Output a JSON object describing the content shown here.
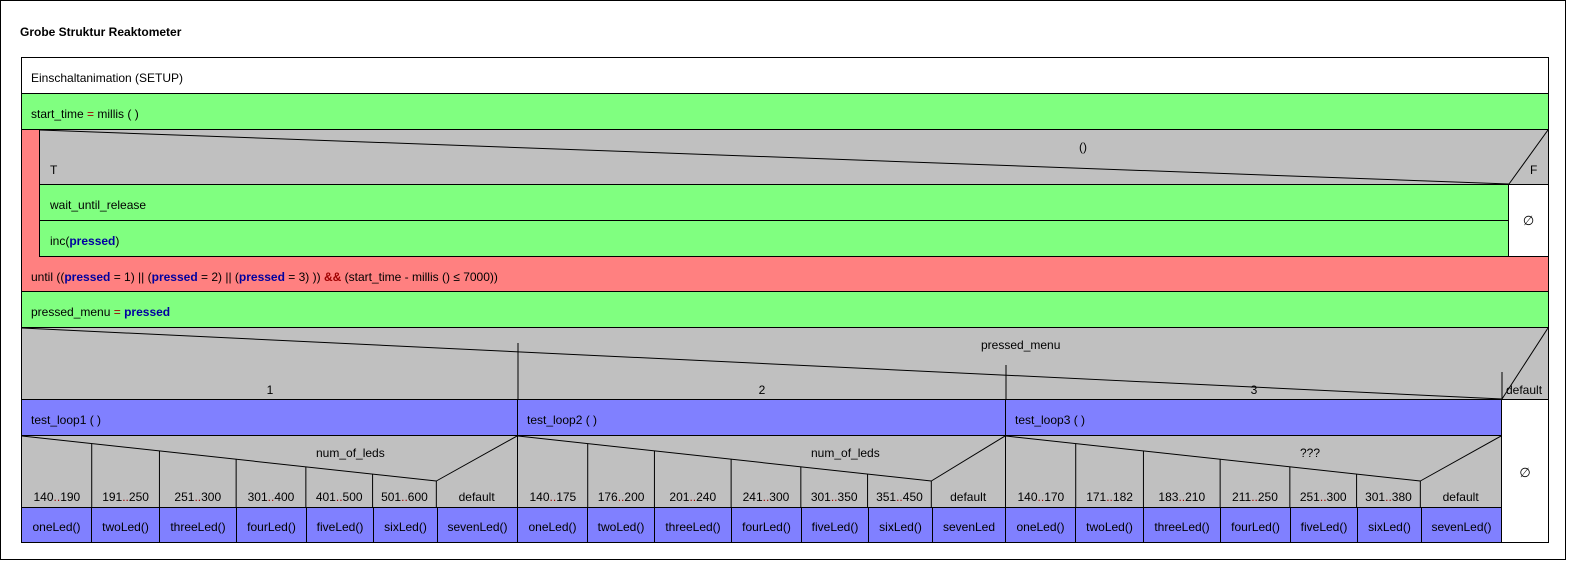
{
  "title": "Grobe Struktur Reaktometer",
  "setup_label": "Einschaltanimation  (SETUP)",
  "start_time": {
    "var": "start_time",
    "op": "=",
    "rhs": "millis ( )"
  },
  "if_block": {
    "condition": "()",
    "true_label": "T",
    "false_label": "F",
    "true_statements": [
      "wait_until_release"
    ],
    "inc_call": {
      "pre": "inc(",
      "var": "pressed",
      "post": ")"
    },
    "false_symbol": "∅"
  },
  "until_line": {
    "p1": "until ((",
    "v1": "pressed",
    "p2": " = 1) || (",
    "v2": "pressed",
    "p3": " = 2) || (",
    "v3": "pressed",
    "p4": " = 3) )) ",
    "andop": "&&",
    "p5": " (start_time - millis () ≤ 7000))"
  },
  "assign_menu": {
    "var": "pressed_menu",
    "op": "=",
    "rhs": "pressed"
  },
  "switch_main": {
    "selector": "pressed_menu",
    "default_label": "default",
    "default_symbol": "∅",
    "cases": [
      {
        "label": "1",
        "call": "test_loop1 ( )",
        "selector": "num_of_leds",
        "subcases": [
          {
            "label": "140..190",
            "call": "oneLed()"
          },
          {
            "label": "191..250",
            "call": "twoLed()"
          },
          {
            "label": "251..300",
            "call": "threeLed()"
          },
          {
            "label": "301..400",
            "call": "fourLed()"
          },
          {
            "label": "401..500",
            "call": "fiveLed()"
          },
          {
            "label": "501..600",
            "call": "sixLed()"
          },
          {
            "label": "default",
            "call": "sevenLed()"
          }
        ]
      },
      {
        "label": "2",
        "call": "test_loop2 ( )",
        "selector": "num_of_leds",
        "subcases": [
          {
            "label": "140..175",
            "call": "oneLed()"
          },
          {
            "label": "176..200",
            "call": "twoLed()"
          },
          {
            "label": "201..240",
            "call": "threeLed()"
          },
          {
            "label": "241..300",
            "call": "fourLed()"
          },
          {
            "label": "301..350",
            "call": "fiveLed()"
          },
          {
            "label": "351..450",
            "call": "sixLed()"
          },
          {
            "label": "default",
            "call": "sevenLed"
          }
        ]
      },
      {
        "label": "3",
        "call": "test_loop3 ( )",
        "selector": "???",
        "subcases": [
          {
            "label": "140..170",
            "call": "oneLed()"
          },
          {
            "label": "171..182",
            "call": "twoLed()"
          },
          {
            "label": "183..210",
            "call": "threeLed()"
          },
          {
            "label": "211..250",
            "call": "fourLed()"
          },
          {
            "label": "251..300",
            "call": "fiveLed()"
          },
          {
            "label": "301..380",
            "call": "sixLed()"
          },
          {
            "label": "default",
            "call": "sevenLed()"
          }
        ]
      }
    ]
  }
}
